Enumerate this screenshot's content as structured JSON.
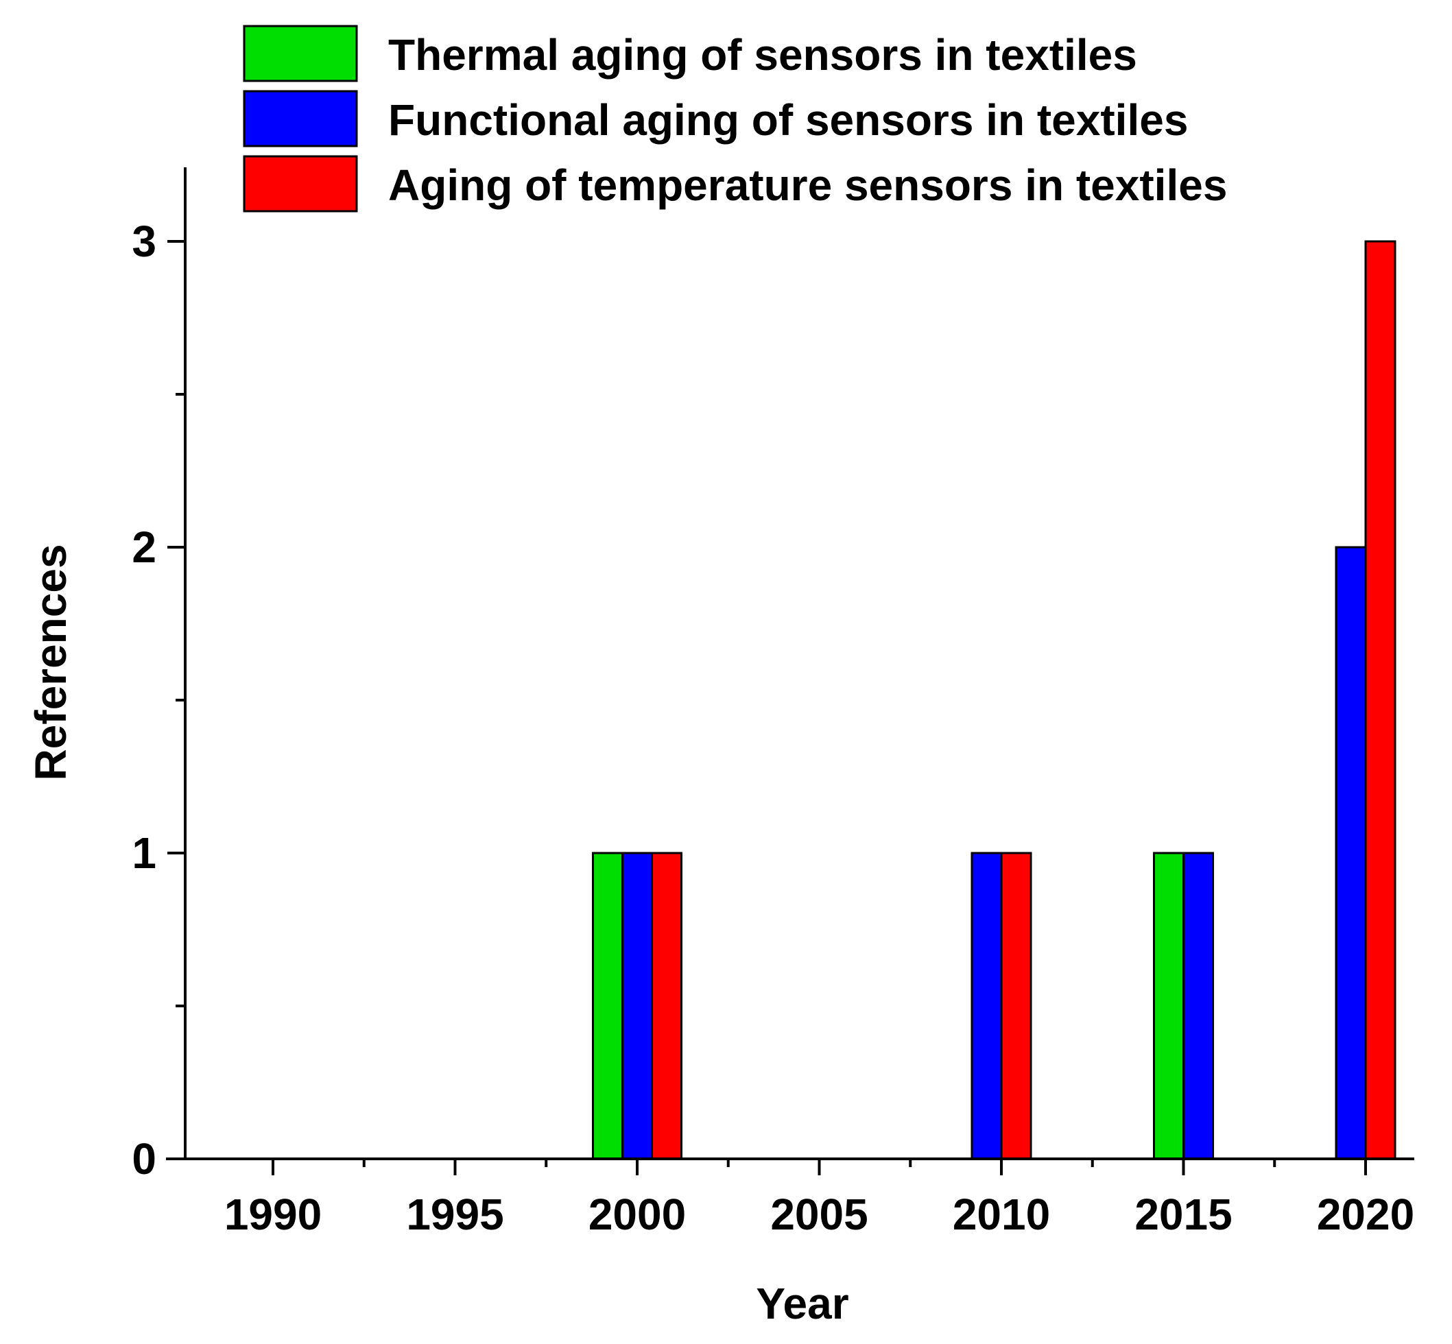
{
  "chart_data": {
    "type": "bar",
    "title": "",
    "xlabel": "Year",
    "ylabel": "References",
    "ylim": [
      0,
      3.2
    ],
    "yticks": [
      "0",
      "1",
      "2",
      "3"
    ],
    "categories": [
      "1990",
      "1995",
      "2000",
      "2005",
      "2010",
      "2015",
      "2020"
    ],
    "legend_position": "top",
    "series": [
      {
        "name": "Thermal aging of sensors in textiles",
        "color": "#00DD00",
        "values": [
          0,
          0,
          1,
          0,
          0,
          1,
          0
        ]
      },
      {
        "name": "Functional aging of sensors in textiles",
        "color": "#0000FF",
        "values": [
          0,
          0,
          1,
          0,
          1,
          1,
          2
        ]
      },
      {
        "name": "Aging of temperature sensors in textiles",
        "color": "#FF0000",
        "values": [
          0,
          0,
          1,
          0,
          1,
          0,
          3
        ]
      }
    ]
  }
}
